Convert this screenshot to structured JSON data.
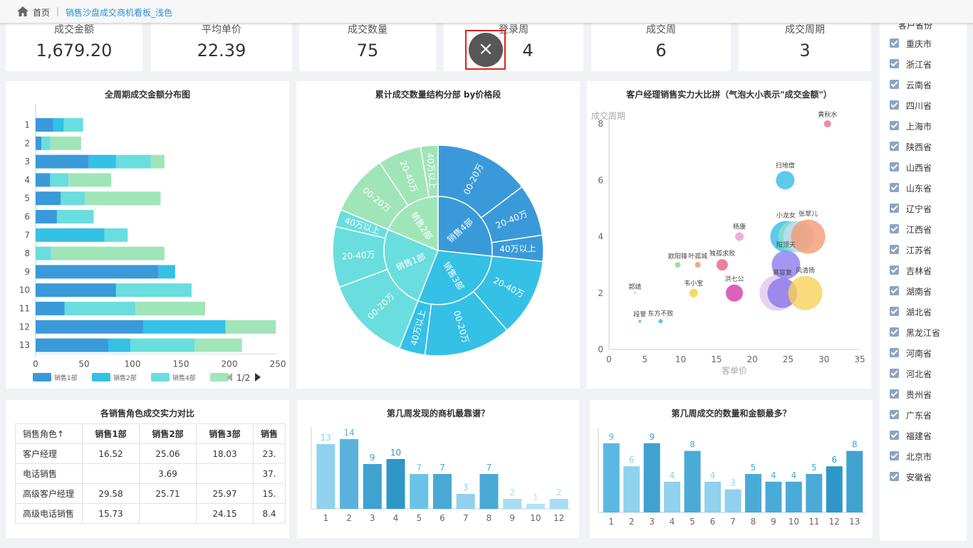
{
  "breadcrumb": {
    "home": "首页",
    "sep": "|",
    "current": "销售沙盘成交商机看板_浅色"
  },
  "kpis": [
    {
      "title": "成交金额",
      "value": "1,679.20"
    },
    {
      "title": "平均单价",
      "value": "22.39"
    },
    {
      "title": "成交数量",
      "value": "75"
    },
    {
      "title": "登录周",
      "value": "4"
    },
    {
      "title": "成交周",
      "value": "6"
    },
    {
      "title": "成交周期",
      "value": "3"
    }
  ],
  "close_icon": "×",
  "colors": {
    "dept1": "#3a9ad9",
    "dept2": "#35c0e6",
    "dept3": "#6addde",
    "dept4": "#a0e5b8",
    "bar_dark": "#2f96c8",
    "bar_light": "#8fd1ee"
  },
  "panels": {
    "stacked": "全周期成交金额分布图",
    "sunburst": "累计成交数量结构分部 by价格段",
    "bubble": "客户经理销售实力大比拼（气泡大小表示\"成交金额\"）",
    "table": "各销售角色成交实力对比",
    "weekA": "第几周发现的商机最靠谱？",
    "weekB": "第几周成交的数量和金额最多？"
  },
  "chart_data": [
    {
      "type": "bar",
      "orientation": "horizontal",
      "stacked": true,
      "categories": [
        "1",
        "2",
        "3",
        "4",
        "5",
        "6",
        "7",
        "8",
        "9",
        "10",
        "11",
        "12",
        "13"
      ],
      "series": [
        {
          "name": "销售1部",
          "values": [
            18,
            6,
            55,
            15,
            26,
            22,
            0,
            0,
            127,
            83,
            30,
            111,
            75
          ]
        },
        {
          "name": "销售2部",
          "values": [
            11,
            0,
            28,
            0,
            0,
            0,
            71,
            0,
            17,
            0,
            0,
            85,
            23
          ]
        },
        {
          "name": "销售4部",
          "values": [
            20,
            9,
            36,
            19,
            25,
            38,
            24,
            16,
            0,
            78,
            73,
            0,
            66
          ]
        },
        {
          "name": "",
          "values": [
            0,
            32,
            14,
            44,
            78,
            0,
            0,
            117,
            0,
            0,
            72,
            52,
            49
          ]
        }
      ],
      "xlim": [
        0,
        250
      ],
      "xticks": [
        "0",
        "50",
        "100",
        "150",
        "200",
        "250"
      ],
      "legend_page": "1/2"
    },
    {
      "type": "sunburst",
      "inner": [
        {
          "name": "销售4部",
          "value": 20
        },
        {
          "name": "销售3部",
          "value": 22
        },
        {
          "name": "销售1部",
          "value": 19
        },
        {
          "name": "销售2部",
          "value": 14
        }
      ],
      "outer": [
        {
          "name": "00-20万",
          "value": 11
        },
        {
          "name": "20-40万",
          "value": 6
        },
        {
          "name": "40万以上",
          "value": 3
        },
        {
          "name": "20-40万",
          "value": 9
        },
        {
          "name": "00-20万",
          "value": 10
        },
        {
          "name": "40万以上",
          "value": 3
        },
        {
          "name": "00-20万",
          "value": 10
        },
        {
          "name": "20-40万",
          "value": 7
        },
        {
          "name": "40万以上",
          "value": 2
        },
        {
          "name": "00-20万",
          "value": 7
        },
        {
          "name": "20-40万",
          "value": 5
        },
        {
          "name": "40万以上",
          "value": 2
        }
      ]
    },
    {
      "type": "scatter",
      "xlabel": "客单价",
      "ylabel": "成交周期",
      "xlim": [
        0,
        35
      ],
      "ylim": [
        0,
        8
      ],
      "xticks": [
        "0",
        "5",
        "10",
        "15",
        "20",
        "25",
        "30",
        "35"
      ],
      "yticks": [
        "0",
        "2",
        "4",
        "6",
        "8"
      ],
      "points": [
        {
          "x": 30.5,
          "y": 8,
          "name": "黄秋水",
          "color": "#ec6f8f",
          "r": 5
        },
        {
          "x": 24.6,
          "y": 6,
          "name": "扫地僧",
          "color": "#35bde6",
          "r": 13
        },
        {
          "x": 18.2,
          "y": 4,
          "name": "杨康",
          "color": "#e59bd8",
          "r": 6
        },
        {
          "x": 9.6,
          "y": 3,
          "name": "欧阳锋",
          "color": "#8fd48f",
          "r": 4
        },
        {
          "x": 12.4,
          "y": 3,
          "name": "叶孤城",
          "color": "#f08f67",
          "r": 4
        },
        {
          "x": 15.8,
          "y": 3,
          "name": "独孤求败",
          "color": "#ec5f85",
          "r": 8
        },
        {
          "x": 17.5,
          "y": 2,
          "name": "洪七公",
          "color": "#d63aa6",
          "r": 12
        },
        {
          "x": 11.8,
          "y": 2,
          "name": "韦小宝",
          "color": "#f5d23a",
          "r": 6
        },
        {
          "x": 3.6,
          "y": 2,
          "name": "郭靖",
          "color": "#888888",
          "r": 1
        },
        {
          "x": 4.3,
          "y": 1,
          "name": "段誉",
          "color": "#35bde6",
          "r": 2
        },
        {
          "x": 7.2,
          "y": 1,
          "name": "东方不败",
          "color": "#35bde6",
          "r": 3
        },
        {
          "x": 23.5,
          "y": 2,
          "name": "",
          "color": "#e2c4f0",
          "r": 25
        },
        {
          "x": 24.2,
          "y": 2,
          "name": "慕容复",
          "color": "#8877e8",
          "r": 21
        },
        {
          "x": 27.4,
          "y": 2,
          "name": "风清扬",
          "color": "#f8d25a",
          "r": 24
        },
        {
          "x": 24.7,
          "y": 3,
          "name": "阳顶天",
          "color": "#8e7cf0",
          "r": 20
        },
        {
          "x": 24.7,
          "y": 4,
          "name": "小龙女",
          "color": "#35bde6",
          "r": 22
        },
        {
          "x": 25.8,
          "y": 4,
          "name": "",
          "color": "#8ae2c6",
          "r": 22
        },
        {
          "x": 26.5,
          "y": 4,
          "name": "",
          "color": "#c7d9f2",
          "r": 22
        },
        {
          "x": 27.8,
          "y": 4,
          "name": "张翠儿",
          "color": "#f59a72",
          "r": 24
        }
      ]
    },
    {
      "type": "table",
      "columns": [
        "销售角色↑",
        "销售1部",
        "销售2部",
        "销售3部",
        "销售"
      ],
      "rows": [
        [
          "客户经理",
          "16.52",
          "25.06",
          "18.03",
          "23."
        ],
        [
          "电话销售",
          "",
          "3.69",
          "",
          "37."
        ],
        [
          "高级客户经理",
          "29.58",
          "25.71",
          "25.97",
          "15."
        ],
        [
          "高级电话销售",
          "15.73",
          "",
          "24.15",
          "8.4"
        ]
      ]
    },
    {
      "type": "bar",
      "categories": [
        "1",
        "2",
        "3",
        "4",
        "5",
        "6",
        "7",
        "8",
        "9",
        "10",
        "12"
      ],
      "values": [
        13,
        14,
        9,
        10,
        7,
        7,
        3,
        7,
        2,
        1,
        2
      ],
      "ylim": [
        0,
        15
      ]
    },
    {
      "type": "bar",
      "categories": [
        "1",
        "2",
        "3",
        "4",
        "5",
        "6",
        "7",
        "8",
        "9",
        "10",
        "11",
        "12",
        "13"
      ],
      "values": [
        9,
        6,
        9,
        4,
        8,
        4,
        3,
        5,
        4,
        4,
        5,
        6,
        8
      ],
      "ylim": [
        0,
        10
      ]
    }
  ],
  "provinces": {
    "title": "客户省份",
    "items": [
      "重庆市",
      "浙江省",
      "云南省",
      "四川省",
      "上海市",
      "陕西省",
      "山西省",
      "山东省",
      "辽宁省",
      "江西省",
      "江苏省",
      "吉林省",
      "湖南省",
      "湖北省",
      "黑龙江省",
      "河南省",
      "河北省",
      "贵州省",
      "广东省",
      "福建省",
      "北京市",
      "安徽省"
    ]
  }
}
